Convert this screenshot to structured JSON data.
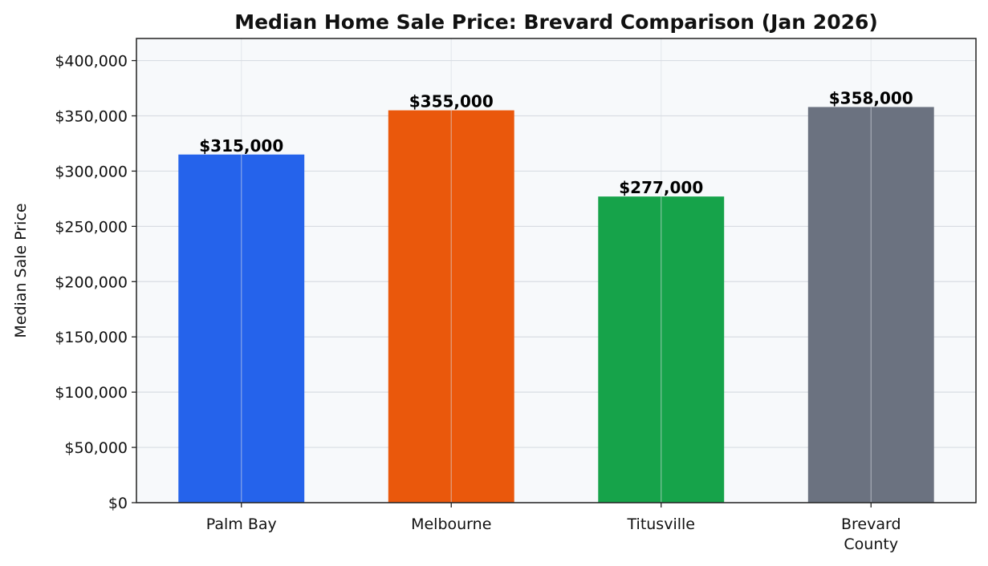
{
  "chart_data": {
    "type": "bar",
    "title": "Median Home Sale Price: Brevard Comparison (Jan 2026)",
    "xlabel": "",
    "ylabel": "Median Sale Price",
    "categories": [
      [
        "Palm Bay"
      ],
      [
        "Melbourne"
      ],
      [
        "Titusville"
      ],
      [
        "Brevard",
        "County"
      ]
    ],
    "values": [
      315000,
      355000,
      277000,
      358000
    ],
    "value_labels": [
      "$315,000",
      "$355,000",
      "$277,000",
      "$358,000"
    ],
    "colors": [
      "#2563eb",
      "#ea580c",
      "#16a34a",
      "#6b7280"
    ],
    "ylim": [
      0,
      420000
    ],
    "yticks": [
      0,
      50000,
      100000,
      150000,
      200000,
      250000,
      300000,
      350000,
      400000
    ],
    "ytick_labels": [
      "$0",
      "$50,000",
      "$100,000",
      "$150,000",
      "$200,000",
      "$250,000",
      "$300,000",
      "$350,000",
      "$400,000"
    ],
    "grid": true,
    "background": "#f7f9fb"
  }
}
